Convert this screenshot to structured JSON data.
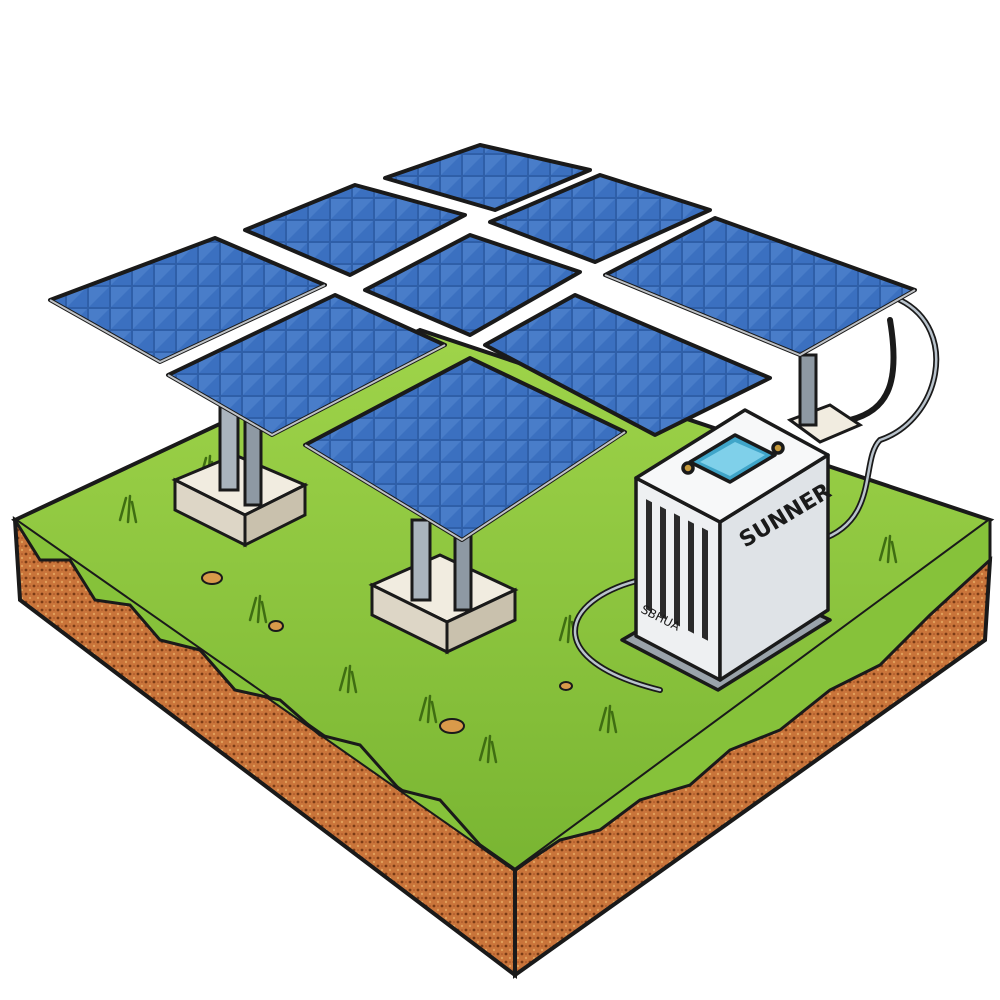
{
  "illustration": {
    "colors": {
      "grass": "#8cc63f",
      "grass_dark": "#5a8a1e",
      "soil": "#c9743a",
      "panel": "#2f5fa8",
      "panel_light": "#6fa0de",
      "frame": "#d9dde3",
      "inverter": "#eef0f2",
      "outline": "#1a1a1a"
    },
    "inverter": {
      "brand_label": "SUNNER",
      "small_label": "SBHUA"
    }
  }
}
